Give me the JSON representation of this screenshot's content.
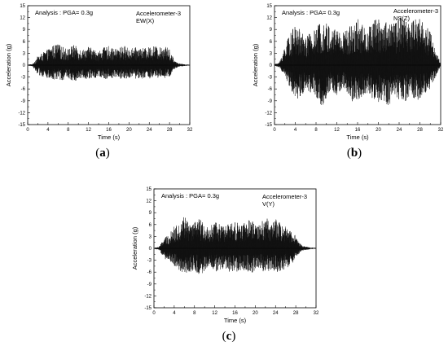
{
  "chart_data": [
    {
      "type": "line",
      "panel_label": "(a)",
      "annotation_left": "Analysis : PGA= 0.3g",
      "annotation_right": [
        "Accelerometer-3",
        "EW(X)"
      ],
      "xlabel": "Time (s)",
      "ylabel": "Acceleration (g)",
      "xlim": [
        0,
        32
      ],
      "ylim": [
        -15,
        15
      ],
      "xticks": [
        0,
        2,
        4,
        6,
        8,
        10,
        12,
        14,
        16,
        18,
        20,
        22,
        24,
        26,
        28,
        30,
        32
      ],
      "xticklabels": [
        "0",
        "",
        "4",
        "",
        "8",
        "",
        "12",
        "",
        "16",
        "",
        "20",
        "",
        "24",
        "",
        "28",
        "",
        "32"
      ],
      "yticks": [
        -15,
        -12,
        -9,
        -6,
        -3,
        0,
        3,
        6,
        9,
        12,
        15
      ],
      "yticklabels": [
        "-15",
        "-12",
        "-9",
        "-6",
        "-3",
        "0",
        "3",
        "6",
        "9",
        "12",
        "15"
      ],
      "signal_envelope": {
        "t": [
          0,
          1,
          2,
          3,
          4,
          5,
          6,
          7,
          8,
          9,
          10,
          11,
          12,
          13,
          14,
          15,
          16,
          17,
          18,
          19,
          20,
          21,
          22,
          23,
          24,
          25,
          26,
          27,
          28,
          29,
          30,
          31,
          32
        ],
        "upper": [
          0.1,
          0.3,
          2.3,
          3.2,
          4.0,
          5.0,
          5.4,
          4.6,
          4.2,
          5.2,
          4.4,
          4.0,
          4.8,
          4.0,
          3.6,
          4.4,
          4.8,
          4.0,
          4.4,
          5.0,
          4.2,
          4.4,
          4.6,
          4.2,
          4.6,
          5.0,
          4.4,
          5.2,
          4.0,
          1.2,
          0.4,
          0.2,
          0.1
        ],
        "lower": [
          -0.1,
          -0.3,
          -2.4,
          -3.0,
          -3.4,
          -4.0,
          -3.6,
          -3.8,
          -3.2,
          -4.2,
          -3.6,
          -3.2,
          -3.6,
          -3.4,
          -3.0,
          -3.4,
          -3.6,
          -3.2,
          -3.4,
          -3.6,
          -3.2,
          -3.4,
          -3.6,
          -3.2,
          -3.4,
          -3.6,
          -3.2,
          -3.6,
          -3.0,
          -1.0,
          -0.4,
          -0.2,
          -0.1
        ]
      }
    },
    {
      "type": "line",
      "panel_label": "(b)",
      "annotation_left": "Analysis : PGA= 0.3g",
      "annotation_right": [
        "Accelerometer-3",
        "NS(Z)"
      ],
      "xlabel": "Time (s)",
      "ylabel": "Acceleration (g)",
      "xlim": [
        0,
        32
      ],
      "ylim": [
        -15,
        15
      ],
      "xticks": [
        0,
        2,
        4,
        6,
        8,
        10,
        12,
        14,
        16,
        18,
        20,
        22,
        24,
        26,
        28,
        30,
        32
      ],
      "xticklabels": [
        "0",
        "",
        "4",
        "",
        "8",
        "",
        "12",
        "",
        "16",
        "",
        "20",
        "",
        "24",
        "",
        "28",
        "",
        "32"
      ],
      "yticks": [
        -15,
        -12,
        -9,
        -6,
        -3,
        0,
        3,
        6,
        9,
        12,
        15
      ],
      "yticklabels": [
        "-15",
        "-12",
        "-9",
        "-6",
        "-3",
        "0",
        "3",
        "6",
        "9",
        "12",
        "15"
      ],
      "signal_envelope": {
        "t": [
          0,
          1,
          2,
          3,
          4,
          5,
          6,
          7,
          8,
          9,
          10,
          11,
          12,
          13,
          14,
          15,
          16,
          17,
          18,
          19,
          20,
          21,
          22,
          23,
          24,
          25,
          26,
          27,
          28,
          29,
          30,
          31,
          32
        ],
        "upper": [
          0.2,
          0.8,
          5.0,
          8.0,
          10.0,
          9.0,
          7.0,
          8.5,
          9.0,
          12.0,
          11.0,
          9.0,
          10.0,
          8.5,
          9.0,
          11.0,
          12.0,
          10.0,
          9.5,
          11.5,
          12.0,
          11.0,
          12.0,
          10.5,
          12.0,
          12.5,
          11.0,
          12.5,
          12.0,
          10.5,
          9.0,
          4.0,
          0.4
        ],
        "lower": [
          -0.1,
          -0.6,
          -3.0,
          -6.0,
          -8.0,
          -9.0,
          -6.0,
          -7.0,
          -8.0,
          -10.5,
          -9.0,
          -6.0,
          -8.0,
          -6.0,
          -7.0,
          -9.5,
          -9.0,
          -8.0,
          -7.0,
          -9.0,
          -10.0,
          -9.0,
          -10.5,
          -8.0,
          -9.0,
          -10.0,
          -8.0,
          -8.5,
          -9.0,
          -7.0,
          -6.0,
          -3.0,
          -0.3
        ]
      }
    },
    {
      "type": "line",
      "panel_label": "(c)",
      "annotation_left": "Analysis : PGA= 0.3g",
      "annotation_right": [
        "Accelerometer-3",
        "V(Y)"
      ],
      "xlabel": "Time (s)",
      "ylabel": "Acceleration (g)",
      "xlim": [
        0,
        32
      ],
      "ylim": [
        -15,
        15
      ],
      "xticks": [
        0,
        2,
        4,
        6,
        8,
        10,
        12,
        14,
        16,
        18,
        20,
        22,
        24,
        26,
        28,
        30,
        32
      ],
      "xticklabels": [
        "0",
        "",
        "4",
        "",
        "8",
        "",
        "12",
        "",
        "16",
        "",
        "20",
        "",
        "24",
        "",
        "28",
        "",
        "32"
      ],
      "yticks": [
        -15,
        -12,
        -9,
        -6,
        -3,
        0,
        3,
        6,
        9,
        12,
        15
      ],
      "yticklabels": [
        "-15",
        "-12",
        "-9",
        "-6",
        "-3",
        "0",
        "3",
        "6",
        "9",
        "12",
        "15"
      ],
      "signal_envelope": {
        "t": [
          0,
          1,
          2,
          3,
          4,
          5,
          6,
          7,
          8,
          9,
          10,
          11,
          12,
          13,
          14,
          15,
          16,
          17,
          18,
          19,
          20,
          21,
          22,
          23,
          24,
          25,
          26,
          27,
          28,
          29,
          30,
          31,
          32
        ],
        "upper": [
          0.1,
          0.4,
          2.5,
          3.5,
          5.5,
          6.5,
          8.5,
          6.0,
          6.5,
          7.5,
          6.0,
          5.0,
          7.5,
          6.0,
          5.5,
          6.5,
          7.0,
          6.0,
          6.5,
          7.5,
          6.0,
          6.0,
          8.5,
          6.0,
          7.5,
          6.5,
          5.5,
          5.0,
          3.0,
          1.0,
          0.4,
          0.2,
          0.1
        ],
        "lower": [
          -0.1,
          -0.4,
          -2.5,
          -3.5,
          -4.5,
          -5.5,
          -6.5,
          -6.0,
          -5.5,
          -7.0,
          -6.0,
          -4.5,
          -6.0,
          -5.5,
          -5.0,
          -6.0,
          -6.5,
          -5.5,
          -6.0,
          -6.5,
          -5.5,
          -5.5,
          -6.5,
          -5.5,
          -6.5,
          -6.0,
          -5.0,
          -4.5,
          -2.5,
          -0.8,
          -0.4,
          -0.2,
          -0.1
        ]
      }
    }
  ]
}
